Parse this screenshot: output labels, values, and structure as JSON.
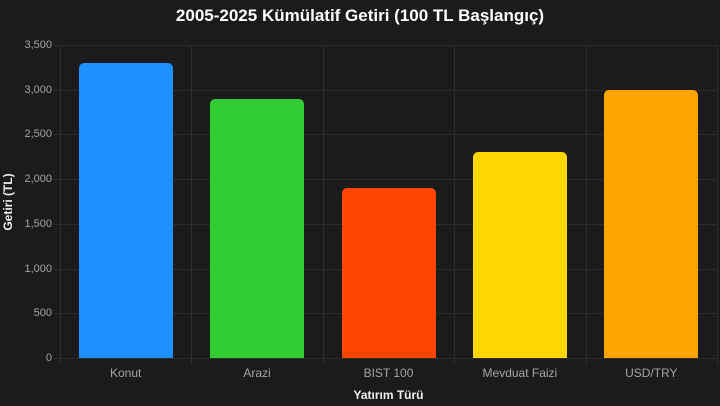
{
  "page": {
    "background": "#1B1B1B",
    "gridline_color": "#2D2D2D",
    "tick_label_color": "#A5A5A5",
    "axis_title_color": "#EFEFEF",
    "title_color": "#FFFFFF"
  },
  "chart_data": {
    "type": "bar",
    "title": "2005-2025 Kümülatif Getiri (100 TL Başlangıç)",
    "xlabel": "Yatırım Türü",
    "ylabel": "Getiri (TL)",
    "categories": [
      "Konut",
      "Arazi",
      "BIST 100",
      "Mevduat Faizi",
      "USD/TRY"
    ],
    "values": [
      3300,
      2900,
      1900,
      2300,
      3000
    ],
    "bar_colors": [
      "#1E90FF",
      "#32CD32",
      "#FF4500",
      "#FFD700",
      "#FFA500"
    ],
    "ylim": [
      0,
      3500
    ],
    "ytick_step": 500,
    "ytick_labels": [
      "0",
      "500",
      "1,000",
      "1,500",
      "2,000",
      "2,500",
      "3,000",
      "3,500"
    ],
    "grid": true,
    "legend": "none"
  }
}
